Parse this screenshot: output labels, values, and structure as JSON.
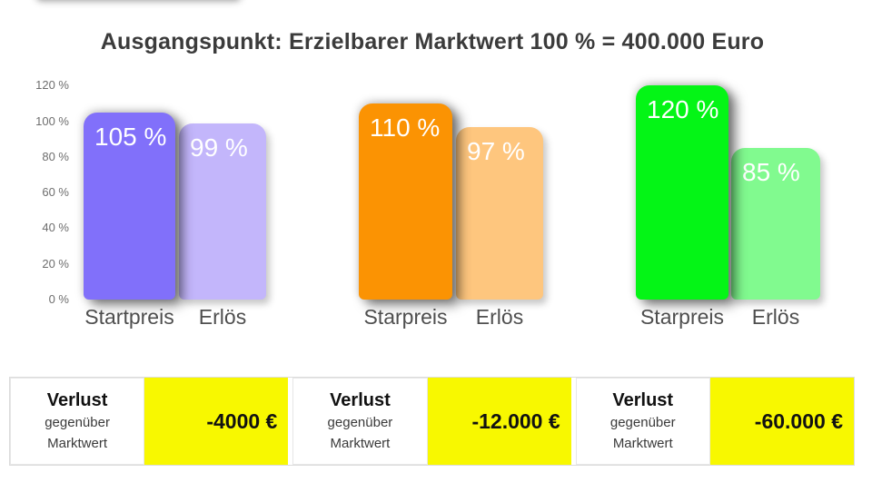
{
  "title": "Ausgangspunkt: Erzielbarer Marktwert 100 % = 400.000 Euro",
  "chart_data": {
    "type": "bar",
    "title": "Ausgangspunkt: Erzielbarer Marktwert 100 % = 400.000 Euro",
    "xlabel": "",
    "ylabel": "",
    "ylim": [
      0,
      120
    ],
    "grid": false,
    "legend": "none",
    "yticks": [
      {
        "value": 120,
        "label": "120 %"
      },
      {
        "value": 100,
        "label": "100 %"
      },
      {
        "value": 80,
        "label": "80 %"
      },
      {
        "value": 60,
        "label": "60 %"
      },
      {
        "value": 40,
        "label": "40 %"
      },
      {
        "value": 20,
        "label": "20 %"
      },
      {
        "value": 0,
        "label": "0 %"
      }
    ],
    "groups": [
      {
        "bars": [
          {
            "label": "Startpreis",
            "value": 105,
            "value_label": "105 %",
            "color": "#8170FA"
          },
          {
            "label": "Erlös",
            "value": 99,
            "value_label": "99 %",
            "color": "#C3B6FB"
          }
        ]
      },
      {
        "bars": [
          {
            "label": "Starpreis",
            "value": 110,
            "value_label": "110 %",
            "color": "#FB9303"
          },
          {
            "label": "Erlös",
            "value": 97,
            "value_label": "97 %",
            "color": "#FEC67E"
          }
        ]
      },
      {
        "bars": [
          {
            "label": "Starpreis",
            "value": 120,
            "value_label": "120 %",
            "color": "#04F516"
          },
          {
            "label": "Erlös",
            "value": 85,
            "value_label": "85 %",
            "color": "#81FA8F"
          }
        ]
      }
    ]
  },
  "loss_table": {
    "highlight_color": "#F8F800",
    "rows": [
      {
        "title": "Verlust",
        "subtitle_line1": "gegenüber",
        "subtitle_line2": "Marktwert",
        "value": "-4000 €"
      },
      {
        "title": "Verlust",
        "subtitle_line1": "gegenüber",
        "subtitle_line2": "Marktwert",
        "value": "-12.000 €"
      },
      {
        "title": "Verlust",
        "subtitle_line1": "gegenüber",
        "subtitle_line2": "Marktwert",
        "value": "-60.000 €"
      }
    ]
  }
}
